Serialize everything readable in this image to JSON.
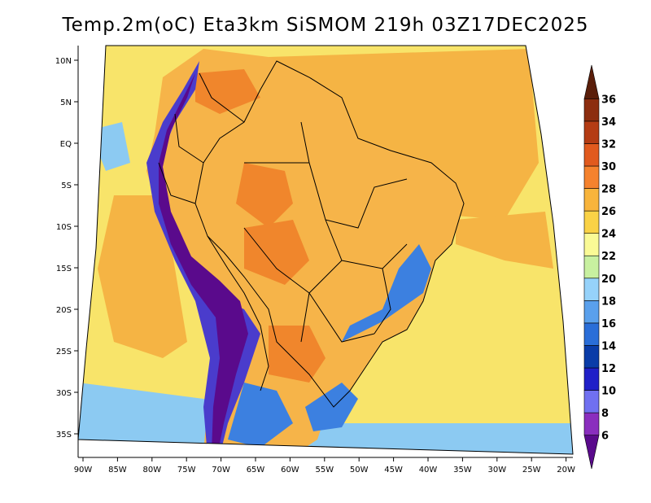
{
  "title": "Temp.2m(oC) Eta3km SiSMOM 219h 03Z17DEC2025",
  "lat_ticks": [
    "10N",
    "5N",
    "EQ",
    "5S",
    "10S",
    "15S",
    "20S",
    "25S",
    "30S",
    "35S"
  ],
  "lon_ticks": [
    "90W",
    "85W",
    "80W",
    "75W",
    "70W",
    "65W",
    "60W",
    "55W",
    "50W",
    "45W",
    "40W",
    "35W",
    "30W",
    "25W",
    "20W"
  ],
  "colorbar": {
    "labels": [
      "6",
      "8",
      "10",
      "12",
      "14",
      "16",
      "18",
      "20",
      "22",
      "24",
      "26",
      "28",
      "30",
      "32",
      "34",
      "36"
    ],
    "colors": [
      "#5a0a8c",
      "#8a2ebe",
      "#7070f0",
      "#2020c8",
      "#0a3ca8",
      "#2a6ed8",
      "#5aa0ec",
      "#96d2fa",
      "#c8f0a0",
      "#fafa96",
      "#fad246",
      "#f8b43c",
      "#f5822d",
      "#e15a1e",
      "#b43c14",
      "#8c2d0f",
      "#5a1e0a"
    ]
  },
  "colors": {
    "ocean": "#f8e46a",
    "warm_ocean": "#f5b444",
    "land": "#f6b449",
    "hot": "#f0862c",
    "andes_dark": "#5a0a8c",
    "andes_mid": "#4a3ccc",
    "cold_south": "#3c80e0",
    "cool_ocean": "#8ccaf2"
  }
}
